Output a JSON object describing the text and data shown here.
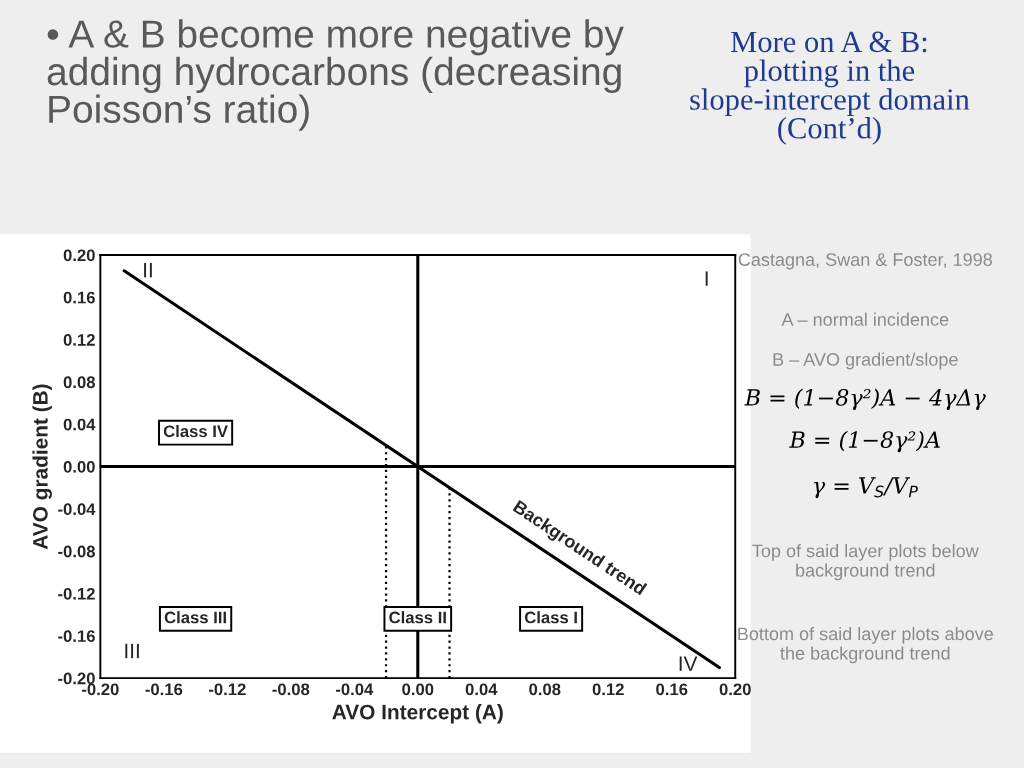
{
  "chart_data": {
    "type": "line",
    "title": "More on A & B: plotting in the slope-intercept domain (Cont’d)",
    "subtitle": "• A & B become more negative by adding hydrocarbons (decreasing Poisson’s ratio)",
    "xlabel": "AVO Intercept (A)",
    "ylabel": "AVO gradient (B)",
    "series": [
      {
        "name": "Background trend",
        "type": "line",
        "x": [
          -0.185,
          0.19
        ],
        "values": [
          0.185,
          -0.19
        ],
        "color": "#000000",
        "line_style": "solid"
      },
      {
        "type": "line",
        "x": [
          -0.02,
          -0.02
        ],
        "values": [
          -0.2,
          0.02
        ],
        "color": "#000000",
        "line_style": "dotted"
      },
      {
        "type": "line",
        "x": [
          0.02,
          0.02
        ],
        "values": [
          -0.2,
          -0.02
        ],
        "color": "#000000",
        "line_style": "dotted"
      },
      {
        "type": "line",
        "x": [
          0,
          0
        ],
        "values": [
          -0.2,
          0.2
        ],
        "color": "#000000",
        "line_style": "solid"
      },
      {
        "type": "line",
        "x": [
          -0.2,
          0.2
        ],
        "values": [
          0,
          0
        ],
        "color": "#000000",
        "line_style": "solid"
      }
    ],
    "xlim": [
      -0.2,
      0.2
    ],
    "ylim": [
      -0.2,
      0.2
    ],
    "xticks": [
      {
        "value": -0.2,
        "label": "-0.20"
      },
      {
        "value": -0.16,
        "label": "-0.16"
      },
      {
        "value": -0.12,
        "label": "-0.12"
      },
      {
        "value": -0.08,
        "label": "-0.08"
      },
      {
        "value": -0.04,
        "label": "-0.04"
      },
      {
        "value": 0,
        "label": "0.00"
      },
      {
        "value": 0.04,
        "label": "0.04"
      },
      {
        "value": 0.08,
        "label": "0.08"
      },
      {
        "value": 0.12,
        "label": "0.12"
      },
      {
        "value": 0.16,
        "label": "0.16"
      },
      {
        "value": 0.2,
        "label": "0.20"
      }
    ],
    "yticks": [
      {
        "value": -0.2,
        "label": "-0.20"
      },
      {
        "value": -0.16,
        "label": "-0.16"
      },
      {
        "value": -0.12,
        "label": "-0.12"
      },
      {
        "value": -0.08,
        "label": "-0.08"
      },
      {
        "value": -0.04,
        "label": "-0.04"
      },
      {
        "value": 0,
        "label": "0.00"
      },
      {
        "value": 0.04,
        "label": "0.04"
      },
      {
        "value": 0.08,
        "label": "0.08"
      },
      {
        "value": 0.12,
        "label": "0.12"
      },
      {
        "value": 0.16,
        "label": "0.16"
      },
      {
        "value": 0.2,
        "label": "0.20"
      }
    ],
    "grid": false,
    "legend": false,
    "marker": "none",
    "annotations": [
      "Class IV",
      "Class III",
      "Class II",
      "Class I",
      "I",
      "II",
      "III",
      "IV",
      "Castagna, Swan & Foster, 1998",
      "A – normal incidence",
      "B – AVO gradient/slope",
      "B = (1−8γ²)A − 4γΔγ",
      "B = (1−8γ²)A",
      "γ = V$_{S}$/V$_{P}$",
      "Top of said layer plots below background trend",
      "Bottom of said layer plots above the background trend"
    ]
  }
}
